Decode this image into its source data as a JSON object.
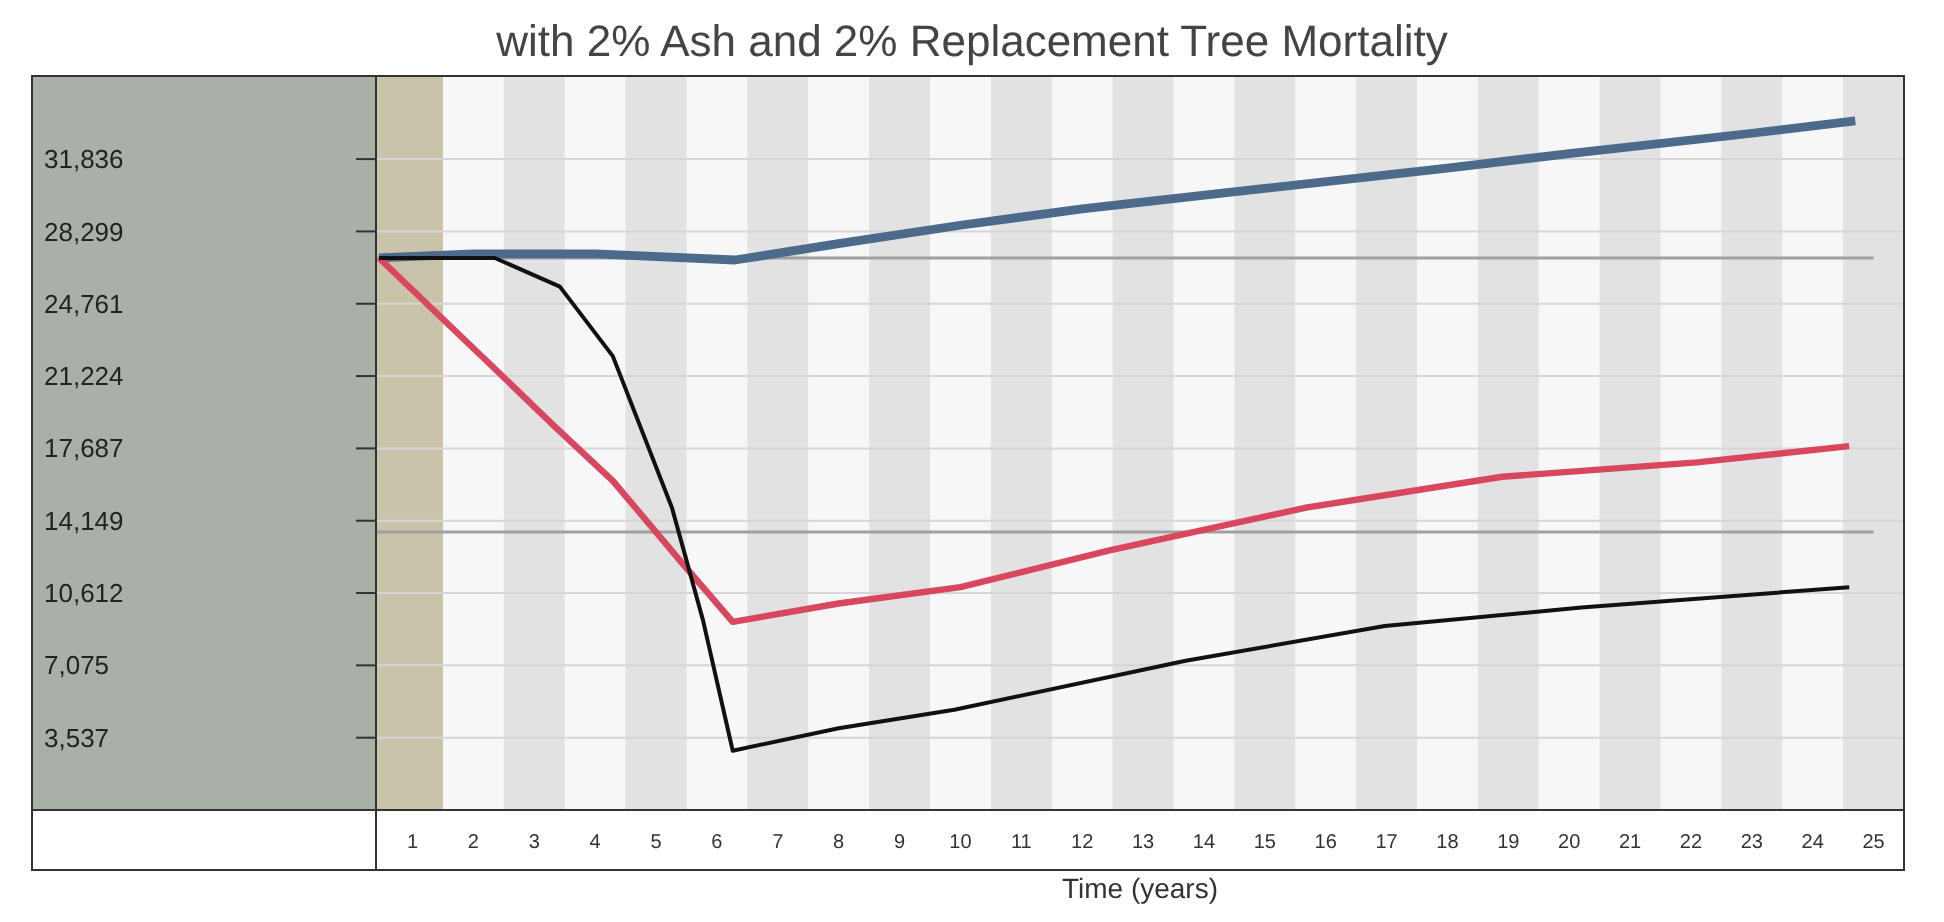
{
  "chart_data": {
    "type": "line",
    "title": "with 2% Ash and 2% Replacement Tree Mortality",
    "xlabel": "Time (years)",
    "xlim": [
      0.4,
      25.5
    ],
    "xticks": [
      1,
      2,
      3,
      4,
      5,
      6,
      7,
      8,
      9,
      10,
      11,
      12,
      13,
      14,
      15,
      16,
      17,
      18,
      19,
      20,
      21,
      22,
      23,
      24,
      25
    ],
    "ylim": [
      0,
      35900
    ],
    "yticks": [
      {
        "value": 3537,
        "label": "3,537"
      },
      {
        "value": 7075,
        "label": "7,075"
      },
      {
        "value": 10612,
        "label": "10,612"
      },
      {
        "value": 14149,
        "label": "14,149"
      },
      {
        "value": 17687,
        "label": "17,687"
      },
      {
        "value": 21224,
        "label": "21,224"
      },
      {
        "value": 24761,
        "label": "24,761"
      },
      {
        "value": 28299,
        "label": "28,299"
      },
      {
        "value": 31836,
        "label": "31,836"
      }
    ],
    "grid": "y",
    "marker": "none",
    "line_style": "solid",
    "bands": [
      {
        "axis": "x",
        "from": 0.4,
        "to": 1.5,
        "color": "#c9c4a9"
      },
      {
        "axis": "x",
        "from": 2.5,
        "to": 3.5,
        "color": "#e2e2e2"
      },
      {
        "axis": "x",
        "from": 4.5,
        "to": 5.5,
        "color": "#e2e2e2"
      },
      {
        "axis": "x",
        "from": 6.5,
        "to": 7.5,
        "color": "#e2e2e2"
      },
      {
        "axis": "x",
        "from": 8.5,
        "to": 9.5,
        "color": "#e2e2e2"
      },
      {
        "axis": "x",
        "from": 10.5,
        "to": 11.5,
        "color": "#e2e2e2"
      },
      {
        "axis": "x",
        "from": 12.5,
        "to": 13.5,
        "color": "#e2e2e2"
      },
      {
        "axis": "x",
        "from": 14.5,
        "to": 15.5,
        "color": "#e2e2e2"
      },
      {
        "axis": "x",
        "from": 16.5,
        "to": 17.5,
        "color": "#e2e2e2"
      },
      {
        "axis": "x",
        "from": 18.5,
        "to": 19.5,
        "color": "#e2e2e2"
      },
      {
        "axis": "x",
        "from": 20.5,
        "to": 21.5,
        "color": "#e2e2e2"
      },
      {
        "axis": "x",
        "from": 22.5,
        "to": 23.5,
        "color": "#e2e2e2"
      },
      {
        "axis": "x",
        "from": 24.5,
        "to": 25.5,
        "color": "#e2e2e2"
      }
    ],
    "ref_lines": [
      {
        "axis": "y",
        "value": 27000,
        "color": "#a0a0a0"
      },
      {
        "axis": "y",
        "value": 13600,
        "color": "#a0a0a0"
      }
    ],
    "series": [
      {
        "color": "#4b6a8c",
        "x": [
          0.45,
          2,
          4,
          6.3,
          8,
          10,
          12,
          15,
          18,
          20,
          23,
          24.7
        ],
        "values": [
          27000,
          27200,
          27200,
          26900,
          27700,
          28600,
          29400,
          30400,
          31400,
          32100,
          33100,
          33700
        ]
      },
      {
        "color": "#d9475f",
        "x": [
          0.45,
          2.45,
          3.32,
          4.29,
          5.45,
          6.26,
          8,
          10,
          12.45,
          15.7,
          18.9,
          22.1,
          24.6
        ],
        "values": [
          27000,
          21300,
          18800,
          16100,
          12000,
          9200,
          10100,
          10900,
          12700,
          14800,
          16300,
          17000,
          17800
        ]
      },
      {
        "color": "#111111",
        "x": [
          0.45,
          2.35,
          3.42,
          4.29,
          5.26,
          5.77,
          6.26,
          8,
          9.9,
          13.7,
          16.97,
          20.2,
          24.6
        ],
        "values": [
          27000,
          27000,
          25600,
          22200,
          14800,
          9300,
          2900,
          4000,
          4900,
          7300,
          9000,
          9900,
          10900
        ]
      }
    ]
  }
}
